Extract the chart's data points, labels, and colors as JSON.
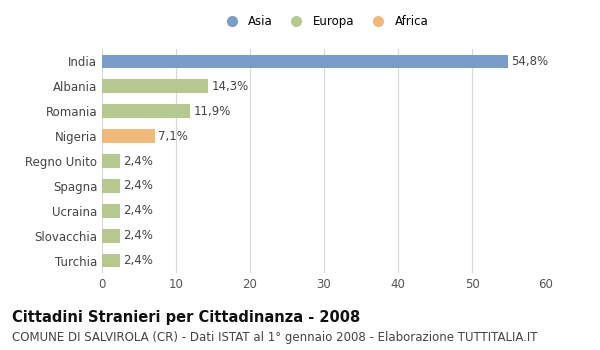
{
  "countries": [
    "India",
    "Albania",
    "Romania",
    "Nigeria",
    "Regno Unito",
    "Spagna",
    "Ucraina",
    "Slovacchia",
    "Turchia"
  ],
  "values": [
    54.8,
    14.3,
    11.9,
    7.1,
    2.4,
    2.4,
    2.4,
    2.4,
    2.4
  ],
  "labels": [
    "54,8%",
    "14,3%",
    "11,9%",
    "7,1%",
    "2,4%",
    "2,4%",
    "2,4%",
    "2,4%",
    "2,4%"
  ],
  "continents": [
    "Asia",
    "Europa",
    "Europa",
    "Africa",
    "Europa",
    "Europa",
    "Europa",
    "Europa",
    "Europa"
  ],
  "colors": {
    "Asia": "#7a9cc8",
    "Europa": "#b5c98e",
    "Africa": "#f0b97a"
  },
  "legend_order": [
    "Asia",
    "Europa",
    "Africa"
  ],
  "xlim": [
    0,
    60
  ],
  "xticks": [
    0,
    10,
    20,
    30,
    40,
    50,
    60
  ],
  "title": "Cittadini Stranieri per Cittadinanza - 2008",
  "subtitle": "COMUNE DI SALVIROLA (CR) - Dati ISTAT al 1° gennaio 2008 - Elaborazione TUTTITALIA.IT",
  "bg_color": "#ffffff",
  "grid_color": "#d8d8d8",
  "bar_height": 0.55,
  "label_fontsize": 8.5,
  "title_fontsize": 10.5,
  "subtitle_fontsize": 8.5
}
